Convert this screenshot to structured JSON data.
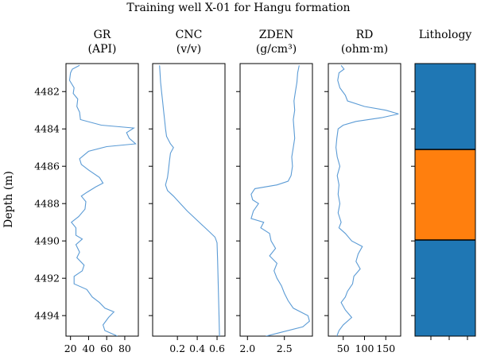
{
  "chart_data": {
    "type": "line",
    "title": "Training well X-01 for Hangu formation",
    "ylabel": "Depth (m)",
    "ylim": [
      4495.1,
      4480.5
    ],
    "yticks": [
      4482,
      4484,
      4486,
      4488,
      4490,
      4492,
      4494
    ],
    "colors": {
      "curve": "#5b9bd5",
      "shale": "#1f77b4",
      "sand": "#ff7f0e",
      "boundary": "#000000"
    },
    "panels": [
      {
        "label1": "GR",
        "label2": "(API)",
        "xlim": [
          15,
          95
        ],
        "xticks": [
          20,
          40,
          60,
          80
        ],
        "points": [
          [
            4480.6,
            30
          ],
          [
            4480.8,
            22
          ],
          [
            4481.0,
            20
          ],
          [
            4481.4,
            19
          ],
          [
            4481.8,
            24
          ],
          [
            4482.1,
            23
          ],
          [
            4482.4,
            28
          ],
          [
            4482.8,
            27
          ],
          [
            4483.1,
            30
          ],
          [
            4483.5,
            31
          ],
          [
            4483.8,
            54
          ],
          [
            4483.95,
            90
          ],
          [
            4484.2,
            82
          ],
          [
            4484.5,
            85
          ],
          [
            4484.8,
            92
          ],
          [
            4484.95,
            60
          ],
          [
            4485.2,
            40
          ],
          [
            4485.6,
            30
          ],
          [
            4485.9,
            32
          ],
          [
            4486.2,
            40
          ],
          [
            4486.6,
            52
          ],
          [
            4486.9,
            56
          ],
          [
            4487.1,
            48
          ],
          [
            4487.4,
            38
          ],
          [
            4487.6,
            32
          ],
          [
            4487.9,
            37
          ],
          [
            4488.3,
            36
          ],
          [
            4488.7,
            29
          ],
          [
            4489.0,
            21
          ],
          [
            4489.3,
            26
          ],
          [
            4489.7,
            26
          ],
          [
            4489.9,
            33
          ],
          [
            4490.2,
            26
          ],
          [
            4490.6,
            30
          ],
          [
            4490.9,
            27
          ],
          [
            4491.3,
            35
          ],
          [
            4491.6,
            33
          ],
          [
            4491.9,
            24
          ],
          [
            4492.3,
            24
          ],
          [
            4492.6,
            38
          ],
          [
            4493.0,
            44
          ],
          [
            4493.3,
            52
          ],
          [
            4493.6,
            58
          ],
          [
            4493.8,
            68
          ],
          [
            4494.1,
            62
          ],
          [
            4494.5,
            56
          ],
          [
            4494.8,
            58
          ],
          [
            4495.1,
            72
          ]
        ]
      },
      {
        "label1": "CNC",
        "label2": "(v/v)",
        "xlim": [
          -0.05,
          0.68
        ],
        "xticks": [
          0.2,
          0.4,
          0.6
        ],
        "points": [
          [
            4480.6,
            0.02
          ],
          [
            4481.0,
            0.025
          ],
          [
            4481.5,
            0.03
          ],
          [
            4482.0,
            0.04
          ],
          [
            4482.5,
            0.05
          ],
          [
            4483.0,
            0.06
          ],
          [
            4483.5,
            0.07
          ],
          [
            4484.0,
            0.08
          ],
          [
            4484.4,
            0.09
          ],
          [
            4484.8,
            0.13
          ],
          [
            4485.0,
            0.16
          ],
          [
            4485.3,
            0.13
          ],
          [
            4485.7,
            0.12
          ],
          [
            4486.2,
            0.11
          ],
          [
            4486.6,
            0.1
          ],
          [
            4487.0,
            0.08
          ],
          [
            4487.3,
            0.1
          ],
          [
            4487.6,
            0.16
          ],
          [
            4488.0,
            0.23
          ],
          [
            4488.4,
            0.3
          ],
          [
            4488.8,
            0.38
          ],
          [
            4489.2,
            0.46
          ],
          [
            4489.5,
            0.52
          ],
          [
            4489.8,
            0.58
          ],
          [
            4490.1,
            0.6
          ],
          [
            4491.0,
            0.605
          ],
          [
            4492.0,
            0.61
          ],
          [
            4493.0,
            0.615
          ],
          [
            4494.0,
            0.62
          ],
          [
            4495.1,
            0.625
          ]
        ]
      },
      {
        "label1": "ZDEN",
        "label2": "(g/cm³)",
        "xlim": [
          1.9,
          2.88
        ],
        "xticks": [
          2.0,
          2.5
        ],
        "points": [
          [
            4480.6,
            2.7
          ],
          [
            4481.0,
            2.68
          ],
          [
            4481.5,
            2.67
          ],
          [
            4482.0,
            2.65
          ],
          [
            4482.5,
            2.63
          ],
          [
            4483.0,
            2.64
          ],
          [
            4483.5,
            2.62
          ],
          [
            4484.0,
            2.63
          ],
          [
            4484.5,
            2.64
          ],
          [
            4485.0,
            2.62
          ],
          [
            4485.5,
            2.6
          ],
          [
            4486.0,
            2.61
          ],
          [
            4486.5,
            2.59
          ],
          [
            4486.8,
            2.55
          ],
          [
            4487.0,
            2.4
          ],
          [
            4487.2,
            2.1
          ],
          [
            4487.5,
            2.05
          ],
          [
            4487.8,
            2.07
          ],
          [
            4488.0,
            2.15
          ],
          [
            4488.4,
            2.08
          ],
          [
            4488.8,
            2.05
          ],
          [
            4489.0,
            2.22
          ],
          [
            4489.3,
            2.18
          ],
          [
            4489.6,
            2.3
          ],
          [
            4490.0,
            2.32
          ],
          [
            4490.4,
            2.38
          ],
          [
            4490.8,
            2.3
          ],
          [
            4491.2,
            2.4
          ],
          [
            4491.6,
            2.36
          ],
          [
            4492.0,
            2.4
          ],
          [
            4492.4,
            2.46
          ],
          [
            4492.8,
            2.5
          ],
          [
            4493.2,
            2.55
          ],
          [
            4493.6,
            2.62
          ],
          [
            4494.0,
            2.82
          ],
          [
            4494.3,
            2.84
          ],
          [
            4494.6,
            2.75
          ],
          [
            4494.9,
            2.45
          ],
          [
            4495.1,
            2.25
          ]
        ]
      },
      {
        "label1": "RD",
        "label2": "(ohm·m)",
        "xlim": [
          15,
          185
        ],
        "xticks": [
          50,
          100,
          150
        ],
        "points": [
          [
            4480.6,
            45
          ],
          [
            4480.8,
            52
          ],
          [
            4481.0,
            40
          ],
          [
            4481.4,
            37
          ],
          [
            4481.8,
            42
          ],
          [
            4482.2,
            55
          ],
          [
            4482.5,
            60
          ],
          [
            4482.8,
            100
          ],
          [
            4483.0,
            150
          ],
          [
            4483.2,
            180
          ],
          [
            4483.4,
            140
          ],
          [
            4483.6,
            80
          ],
          [
            4483.8,
            50
          ],
          [
            4484.0,
            38
          ],
          [
            4484.5,
            35
          ],
          [
            4485.0,
            33
          ],
          [
            4485.5,
            36
          ],
          [
            4486.0,
            42
          ],
          [
            4486.5,
            36
          ],
          [
            4487.0,
            40
          ],
          [
            4487.5,
            38
          ],
          [
            4488.0,
            42
          ],
          [
            4488.5,
            38
          ],
          [
            4489.0,
            45
          ],
          [
            4489.3,
            40
          ],
          [
            4489.6,
            55
          ],
          [
            4490.0,
            70
          ],
          [
            4490.3,
            95
          ],
          [
            4490.7,
            85
          ],
          [
            4491.1,
            80
          ],
          [
            4491.5,
            90
          ],
          [
            4491.9,
            75
          ],
          [
            4492.3,
            72
          ],
          [
            4492.7,
            60
          ],
          [
            4493.0,
            55
          ],
          [
            4493.3,
            45
          ],
          [
            4493.7,
            55
          ],
          [
            4494.1,
            70
          ],
          [
            4494.5,
            50
          ],
          [
            4494.8,
            40
          ],
          [
            4495.1,
            35
          ]
        ]
      }
    ],
    "lithology": {
      "label": "Lithology",
      "intervals": [
        {
          "top": 4480.5,
          "bottom": 4485.1,
          "class": "shale"
        },
        {
          "top": 4485.1,
          "bottom": 4489.95,
          "class": "sand"
        },
        {
          "top": 4489.95,
          "bottom": 4495.1,
          "class": "shale"
        }
      ]
    }
  }
}
